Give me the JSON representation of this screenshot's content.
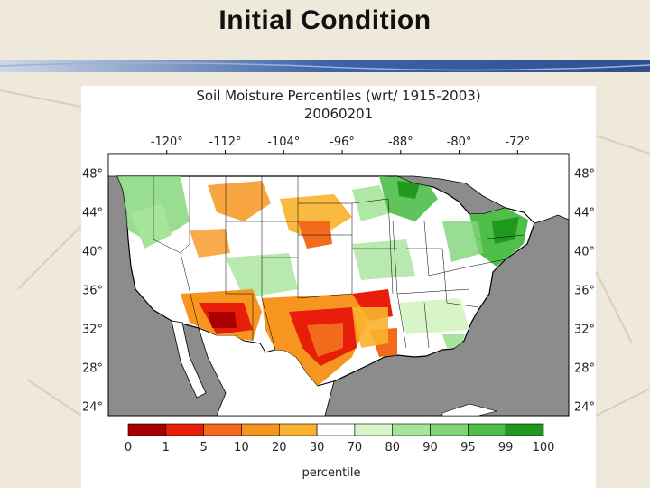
{
  "slide": {
    "title": "Initial Condition"
  },
  "figure": {
    "title": "Soil Moisture Percentiles (wrt/ 1915-2003)",
    "date": "20060201",
    "longitude_labels": [
      "-120°",
      "-112°",
      "-104°",
      "-96°",
      "-88°",
      "-80°",
      "-72°"
    ],
    "longitudes": [
      -120,
      -112,
      -104,
      -96,
      -88,
      -80,
      -72
    ],
    "latitude_labels": [
      "48°",
      "44°",
      "40°",
      "36°",
      "32°",
      "28°",
      "24°"
    ],
    "latitudes": [
      48,
      44,
      40,
      36,
      32,
      28,
      24
    ],
    "legend": {
      "ticks": [
        "0",
        "1",
        "5",
        "10",
        "20",
        "30",
        "70",
        "80",
        "90",
        "95",
        "99",
        "100"
      ],
      "colors": [
        "#a80000",
        "#e81e0a",
        "#f26a1b",
        "#f6951f",
        "#f9b22d",
        "#ffffff",
        "#d8f5c8",
        "#a6e49a",
        "#7fd577",
        "#4fbe4a",
        "#1f9a1f"
      ],
      "label": "percentile"
    },
    "colors": {
      "water": "#8c8c8c",
      "ocean": "#8c8c8c",
      "land_default": "#ffffff"
    }
  }
}
